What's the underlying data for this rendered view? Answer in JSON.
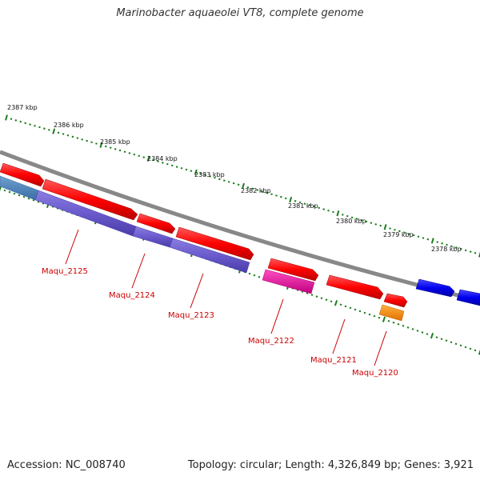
{
  "title": "Marinobacter aquaeolei VT8, complete genome",
  "footer": {
    "accession": "Accession: NC_008740",
    "info": "Topology: circular; Length: 4,326,849 bp; Genes: 3,921"
  },
  "colors": {
    "backbone": "#8a8a8a",
    "tick": "#1e7d1e",
    "gene_red": "#ff1a1a",
    "gene_purple": "#6a5acd",
    "gene_blue": "#1010e6",
    "gene_magenta": "#e0189a",
    "gene_orange": "#ff8c00",
    "label_red": "#cc0000"
  },
  "kbp_labels": [
    "2387 kbp",
    "2386 kbp",
    "2385 kbp",
    "2384 kbp",
    "2383 kbp",
    "2382 kbp",
    "2381 kbp",
    "2380 kbp",
    "2379 kbp",
    "2378 kbp"
  ],
  "gene_labels": [
    "Maqu_2125",
    "Maqu_2124",
    "Maqu_2123",
    "Maqu_2122",
    "Maqu_2121",
    "Maqu_2120"
  ]
}
